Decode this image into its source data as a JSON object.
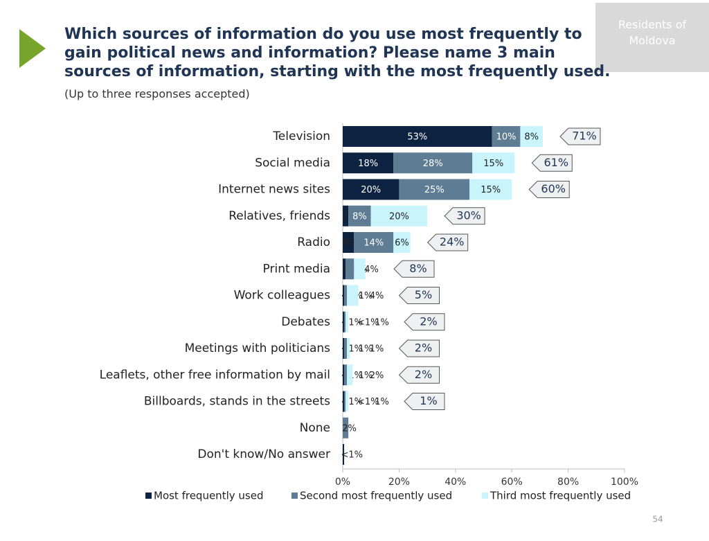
{
  "chart_data": {
    "type": "stacked-bar-horizontal",
    "title": "Which sources of information do you use most frequently to gain political news and information? Please name 3 main sources of information, starting with the most frequently used.",
    "subtitle": "(Up to three responses accepted)",
    "badge": "Residents of Moldova",
    "page_number": "54",
    "categories": [
      "Television",
      "Social media",
      "Internet news sites",
      "Relatives, friends",
      "Radio",
      "Print media",
      "Work colleagues",
      "Debates",
      "Meetings with politicians",
      "Leaflets, other free information by mail",
      "Billboards, stands in the streets",
      "None",
      "Don't know/No answer"
    ],
    "series": [
      {
        "name": "Most frequently used",
        "color": "#0e2341",
        "values": [
          53,
          18,
          20,
          2,
          4,
          1,
          0.5,
          0.5,
          0.5,
          0.5,
          0.5,
          null,
          0.5
        ],
        "value_labels": [
          "53%",
          "18%",
          "20%",
          "2%",
          "4%",
          "1%",
          "<1%",
          "<1%",
          "<1%",
          "<1%",
          "<1%",
          null,
          "<1%"
        ]
      },
      {
        "name": "Second most frequently used",
        "color": "#5e7d94",
        "values": [
          10,
          28,
          25,
          8,
          14,
          3,
          1,
          0.5,
          1,
          1,
          0.5,
          2,
          null
        ],
        "value_labels": [
          "10%",
          "28%",
          "25%",
          "8%",
          "14%",
          "3%",
          "1%",
          "<1%",
          "1%",
          "1%",
          "<1%",
          "2%",
          null
        ]
      },
      {
        "name": "Third most frequently used",
        "color": "#c9f4fc",
        "values": [
          8,
          15,
          15,
          20,
          6,
          4,
          4,
          1,
          1,
          2,
          1,
          null,
          null
        ],
        "value_labels": [
          "8%",
          "15%",
          "15%",
          "20%",
          "6%",
          "4%",
          "4%",
          "1%",
          "1%",
          "2%",
          "1%",
          null,
          null
        ]
      }
    ],
    "totals": {
      "values": [
        71,
        61,
        60,
        30,
        24,
        8,
        5,
        2,
        2,
        2,
        1,
        null,
        null
      ],
      "value_labels": [
        "71%",
        "61%",
        "60%",
        "30%",
        "24%",
        "8%",
        "5%",
        "2%",
        "2%",
        "2%",
        "1%",
        null,
        null
      ]
    },
    "xlim": [
      0,
      100
    ],
    "xticks": [
      {
        "value": 0,
        "label": "0%"
      },
      {
        "value": 20,
        "label": "20%"
      },
      {
        "value": 40,
        "label": "40%"
      },
      {
        "value": 60,
        "label": "60%"
      },
      {
        "value": 80,
        "label": "80%"
      },
      {
        "value": 100,
        "label": "100%"
      }
    ]
  }
}
